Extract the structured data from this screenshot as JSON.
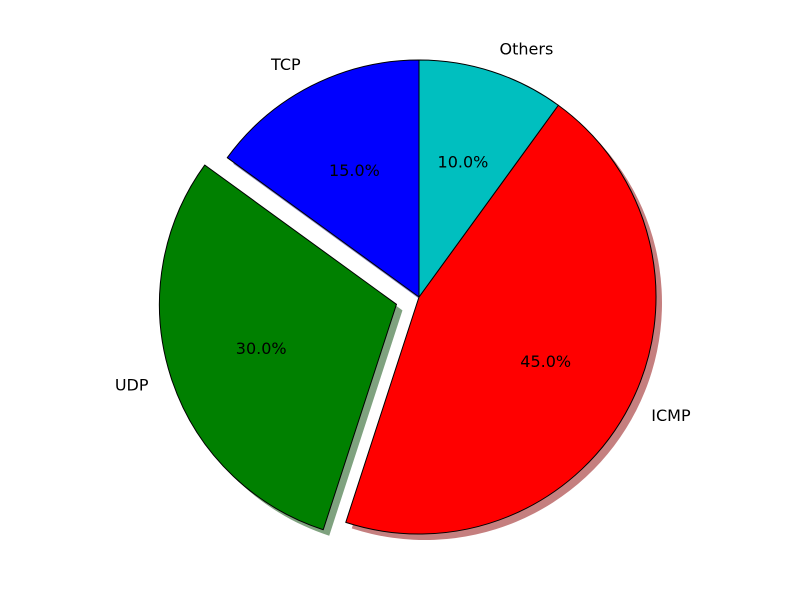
{
  "chart_data": {
    "type": "pie",
    "title": "",
    "start_angle_deg": 90,
    "direction": "counterclockwise",
    "shadow": true,
    "slices": [
      {
        "label": "TCP",
        "value": 15,
        "pct_text": "15.0%",
        "color": "#0000ff",
        "explode": 0
      },
      {
        "label": "UDP",
        "value": 30,
        "pct_text": "30.0%",
        "color": "#008000",
        "explode": 0.1
      },
      {
        "label": "ICMP",
        "value": 45,
        "pct_text": "45.0%",
        "color": "#ff0000",
        "explode": 0
      },
      {
        "label": "Others",
        "value": 10,
        "pct_text": "10.0%",
        "color": "#00bfbf",
        "explode": 0
      }
    ]
  }
}
